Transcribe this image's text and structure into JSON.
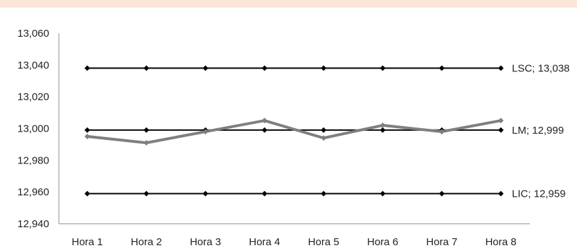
{
  "chart_data": {
    "type": "line",
    "categories": [
      "Hora 1",
      "Hora 2",
      "Hora 3",
      "Hora 4",
      "Hora 5",
      "Hora 6",
      "Hora 7",
      "Hora 8"
    ],
    "ylim": [
      12.94,
      13.06
    ],
    "yticks": [
      12.94,
      12.96,
      12.98,
      13.0,
      13.02,
      13.04,
      13.06
    ],
    "ytick_labels": [
      "12,940",
      "12,960",
      "12,980",
      "13,000",
      "13,020",
      "13,040",
      "13,060"
    ],
    "grid": false,
    "series": [
      {
        "name": "LSC",
        "values": [
          13.038,
          13.038,
          13.038,
          13.038,
          13.038,
          13.038,
          13.038,
          13.038
        ],
        "color": "#000000",
        "marker": "diamond",
        "label": "LSC; 13,038"
      },
      {
        "name": "LM",
        "values": [
          12.999,
          12.999,
          12.999,
          12.999,
          12.999,
          12.999,
          12.999,
          12.999
        ],
        "color": "#000000",
        "marker": "diamond",
        "label": "LM; 12,999"
      },
      {
        "name": "LIC",
        "values": [
          12.959,
          12.959,
          12.959,
          12.959,
          12.959,
          12.959,
          12.959,
          12.959
        ],
        "color": "#000000",
        "marker": "diamond",
        "label": "LIC; 12,959"
      },
      {
        "values": [
          12.995,
          12.991,
          12.998,
          13.005,
          12.994,
          13.002,
          12.998,
          13.005
        ],
        "color": "#7f7f7f",
        "marker": "diamond"
      }
    ]
  }
}
